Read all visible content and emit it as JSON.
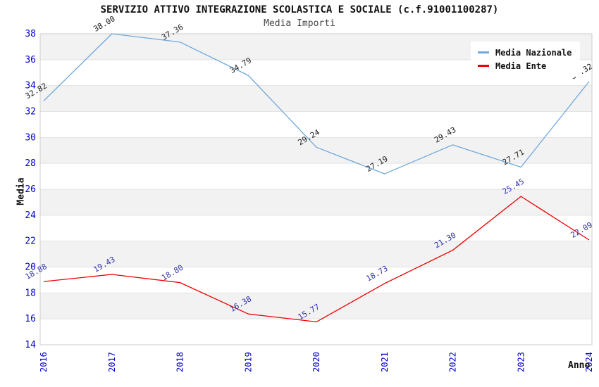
{
  "chart_data": {
    "type": "line",
    "title": "SERVIZIO ATTIVO INTEGRAZIONE SCOLASTICA E SOCIALE (c.f.91001100287)",
    "subtitle": "Media Importi",
    "xlabel": "Anno",
    "ylabel": "Media",
    "x": [
      "2016",
      "2017",
      "2018",
      "2019",
      "2020",
      "2021",
      "2022",
      "2023",
      "2024"
    ],
    "series": [
      {
        "name": "Media Nazionale",
        "color": "#6fa8dc",
        "label_color": "#222222",
        "values": [
          32.82,
          38.0,
          37.36,
          34.79,
          29.24,
          27.19,
          29.43,
          27.71,
          34.32
        ]
      },
      {
        "name": "Media Ente",
        "color": "#ee0000",
        "label_color": "#3333aa",
        "values": [
          18.88,
          19.43,
          18.8,
          16.38,
          15.77,
          18.73,
          21.3,
          25.45,
          22.09
        ]
      }
    ],
    "ylim": [
      14,
      38
    ],
    "ytick_step": 2,
    "grid": "horizontal-bands",
    "legend_position": "top-right-inside",
    "colors": {
      "band": "#f2f2f2",
      "grid": "#e2e2e2",
      "border": "#cccccc",
      "tick": "#0000cc"
    }
  }
}
